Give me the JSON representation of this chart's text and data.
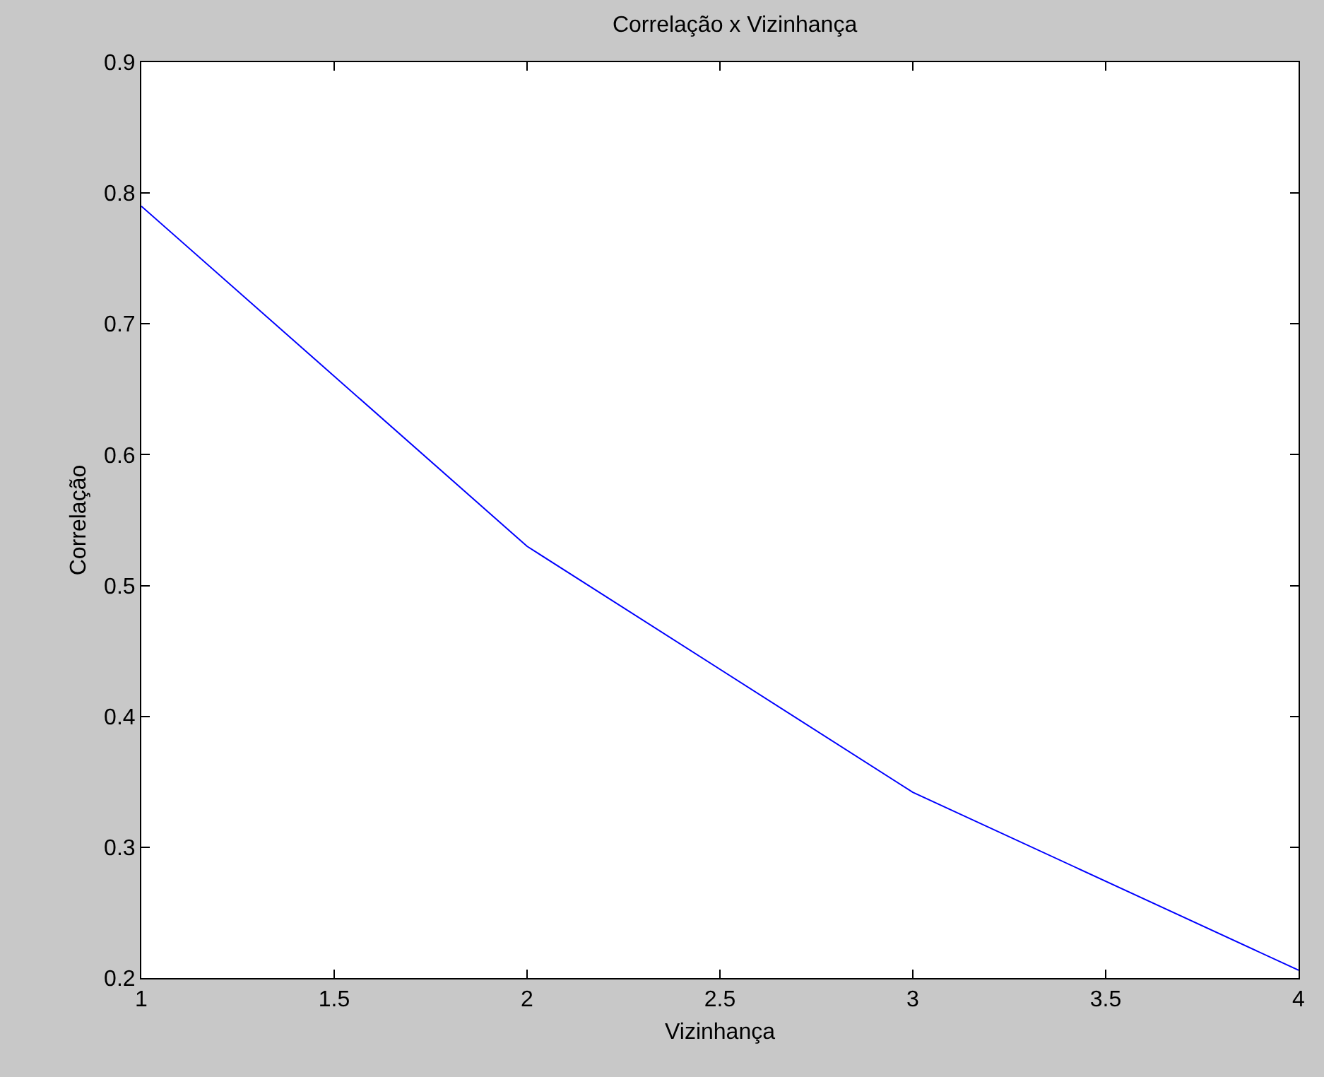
{
  "chart_data": {
    "type": "line",
    "title": "Correlação x Vizinhança",
    "xlabel": "Vizinhança",
    "ylabel": "Correlação",
    "x": [
      1,
      2,
      3,
      4
    ],
    "series": [
      {
        "color": "#0000ff",
        "values": [
          0.79,
          0.53,
          0.342,
          0.206
        ]
      }
    ],
    "xlim": [
      1,
      4
    ],
    "xticks": [
      1,
      1.5,
      2,
      2.5,
      3,
      3.5,
      4
    ],
    "ylim": [
      0.2,
      0.9
    ],
    "yticks": [
      0.2,
      0.3,
      0.4,
      0.5,
      0.6,
      0.7,
      0.8,
      0.9
    ],
    "grid": false,
    "marker": "none",
    "line_style": "solid"
  }
}
